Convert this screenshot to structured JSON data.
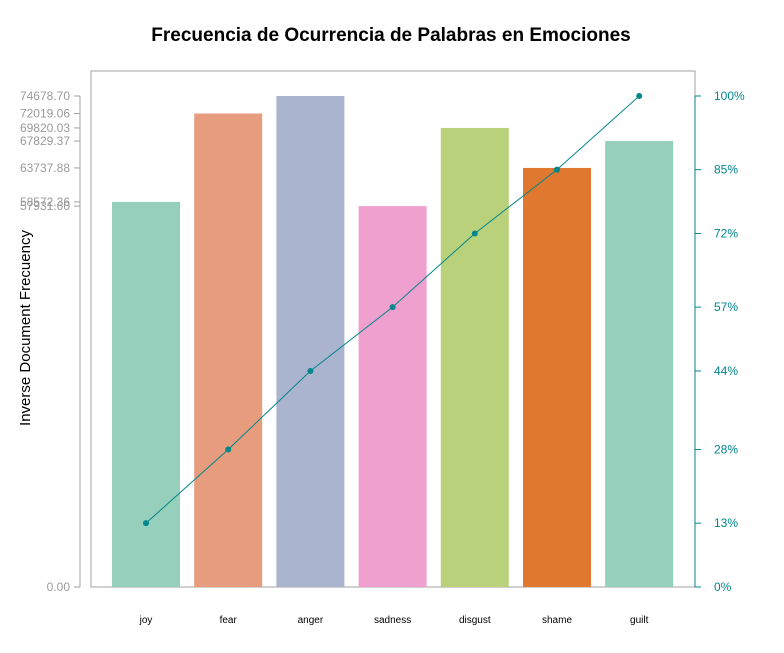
{
  "chart_data": {
    "type": "bar",
    "title": "Frecuencia de Ocurrencia de Palabras en Emociones",
    "ylabel": "Inverse Document Frecuency",
    "xlabel": "",
    "categories": [
      "joy",
      "fear",
      "anger",
      "sadness",
      "disgust",
      "shame",
      "guilt"
    ],
    "values": [
      58572.36,
      72019.06,
      74678.7,
      57931.6,
      69820.03,
      63737.88,
      67829.37
    ],
    "bar_colors": [
      "#96cfbb",
      "#e89c7e",
      "#abb4ce",
      "#f0a0cf",
      "#b8d17a",
      "#e0782f",
      "#96cfbb"
    ],
    "ylim": [
      0,
      74678.7
    ],
    "left_tick_labels": [
      "0.00",
      "57931.60",
      "58572.36",
      "63737.88",
      "67829.37",
      "69820.03",
      "72019.06",
      "74678.70"
    ],
    "cumulative_line": {
      "color": "#00868b",
      "values_pct": [
        13,
        28,
        44,
        57,
        72,
        85,
        100
      ]
    },
    "right_axis": {
      "ticks": [
        0,
        13,
        28,
        44,
        57,
        72,
        85,
        100
      ],
      "tick_labels": [
        "0%",
        "13%",
        "28%",
        "44%",
        "57%",
        "72%",
        "85%",
        "100%"
      ],
      "color": "#00868b"
    },
    "grid": false,
    "legend": "none"
  }
}
